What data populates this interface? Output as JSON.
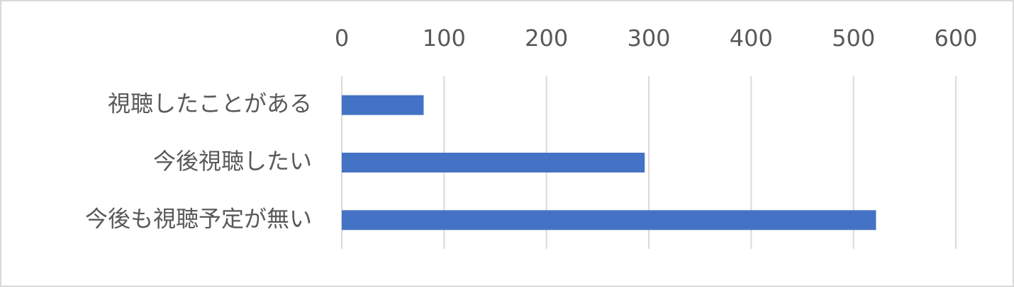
{
  "chart_data": {
    "type": "bar",
    "orientation": "horizontal",
    "categories": [
      "視聴したことがある",
      "今後視聴したい",
      "今後も視聴予定が無い"
    ],
    "values": [
      80,
      296,
      522
    ],
    "color": "#4472c4",
    "xlim": [
      0,
      600
    ],
    "xticks": [
      0,
      100,
      200,
      300,
      400,
      500,
      600
    ],
    "grid": true
  }
}
